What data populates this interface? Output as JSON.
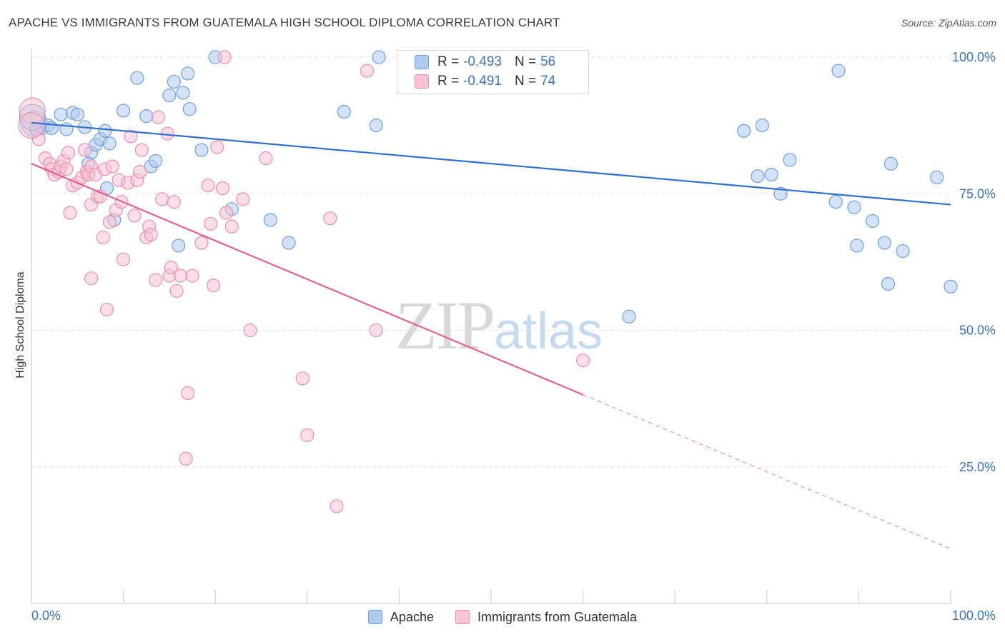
{
  "title": "APACHE VS IMMIGRANTS FROM GUATEMALA HIGH SCHOOL DIPLOMA CORRELATION CHART",
  "source": "Source: ZipAtlas.com",
  "watermark": {
    "zip": "ZIP",
    "atlas": "atlas"
  },
  "legend": {
    "apache": {
      "r_label": "R =",
      "r_value": "-0.493",
      "n_label": "N =",
      "n_value": "56"
    },
    "guatemala": {
      "r_label": "R =",
      "r_value": "-0.491",
      "n_label": "N =",
      "n_value": "74"
    }
  },
  "colors": {
    "apache_fill": "#aecbf0",
    "apache_stroke": "#6f9fdc",
    "apache_line": "#2f6fce",
    "guatemala_fill": "#f8c3d3",
    "guatemala_stroke": "#ec8fac",
    "guatemala_line": "#e2628f",
    "axis_tick_text": "#3b73c4",
    "grid": "#e0e0e0"
  },
  "chart_data": {
    "type": "scatter",
    "title": "APACHE VS IMMIGRANTS FROM GUATEMALA HIGH SCHOOL DIPLOMA CORRELATION CHART",
    "xlabel": "",
    "ylabel": "High School Diploma",
    "xlim": [
      0,
      100
    ],
    "ylim": [
      0,
      100
    ],
    "x_tick_labels": [
      "0.0%",
      "100.0%"
    ],
    "y_tick_labels": [
      "25.0%",
      "50.0%",
      "75.0%",
      "100.0%"
    ],
    "y_ticks": [
      25,
      50,
      75,
      100
    ],
    "grid": true,
    "legend_position": "top-center",
    "series": [
      {
        "name": "Apache",
        "color": "#aecbf0",
        "trend": {
          "x": [
            0,
            100
          ],
          "y": [
            88.0,
            73.0
          ],
          "dashed_from": null
        },
        "points": [
          [
            0.3,
            87.8
          ],
          [
            0.5,
            86.8
          ],
          [
            1.2,
            87.0
          ],
          [
            1.8,
            87.5
          ],
          [
            2.2,
            87.0
          ],
          [
            3.2,
            89.5
          ],
          [
            3.8,
            86.8
          ],
          [
            4.5,
            89.8
          ],
          [
            5.0,
            89.5
          ],
          [
            5.8,
            87.2
          ],
          [
            6.5,
            82.5
          ],
          [
            6.2,
            80.5
          ],
          [
            7.0,
            84.0
          ],
          [
            7.5,
            85.0
          ],
          [
            8.0,
            86.5
          ],
          [
            8.5,
            84.2
          ],
          [
            8.2,
            76.0
          ],
          [
            9.0,
            70.2
          ],
          [
            10.0,
            90.2
          ],
          [
            11.5,
            96.2
          ],
          [
            12.5,
            89.2
          ],
          [
            13.0,
            80.0
          ],
          [
            13.5,
            81.0
          ],
          [
            15.0,
            93.0
          ],
          [
            15.5,
            95.5
          ],
          [
            16.5,
            93.5
          ],
          [
            17.0,
            97.0
          ],
          [
            17.2,
            90.5
          ],
          [
            16.0,
            65.5
          ],
          [
            18.5,
            83.0
          ],
          [
            20.0,
            100.0
          ],
          [
            21.8,
            72.2
          ],
          [
            26.0,
            70.2
          ],
          [
            28.0,
            66.0
          ],
          [
            34.0,
            90.0
          ],
          [
            37.5,
            87.5
          ],
          [
            37.8,
            100.0
          ],
          [
            65.0,
            52.5
          ],
          [
            77.5,
            86.5
          ],
          [
            79.0,
            78.2
          ],
          [
            79.5,
            87.5
          ],
          [
            80.5,
            78.5
          ],
          [
            81.5,
            75.0
          ],
          [
            82.5,
            81.2
          ],
          [
            87.8,
            97.5
          ],
          [
            87.5,
            73.5
          ],
          [
            89.5,
            72.5
          ],
          [
            89.8,
            65.5
          ],
          [
            91.5,
            70.0
          ],
          [
            92.8,
            66.0
          ],
          [
            93.2,
            58.5
          ],
          [
            93.5,
            80.5
          ],
          [
            94.8,
            64.5
          ],
          [
            98.5,
            78.0
          ],
          [
            100.0,
            58.0
          ],
          [
            0.1,
            89.0
          ]
        ]
      },
      {
        "name": "Immigrants from Guatemala",
        "color": "#f8c3d3",
        "trend": {
          "x": [
            0,
            100
          ],
          "y": [
            80.5,
            10.0
          ],
          "dashed_from": 60
        },
        "points": [
          [
            0.1,
            90.2
          ],
          [
            0.8,
            85.0
          ],
          [
            1.5,
            81.5
          ],
          [
            2.0,
            80.5
          ],
          [
            2.2,
            79.5
          ],
          [
            2.5,
            78.5
          ],
          [
            3.0,
            79.0
          ],
          [
            3.2,
            80.0
          ],
          [
            3.5,
            81.0
          ],
          [
            3.8,
            79.5
          ],
          [
            4.0,
            82.5
          ],
          [
            4.2,
            71.5
          ],
          [
            4.5,
            76.5
          ],
          [
            5.0,
            77.0
          ],
          [
            5.5,
            78.0
          ],
          [
            5.8,
            83.0
          ],
          [
            6.0,
            79.0
          ],
          [
            6.2,
            78.5
          ],
          [
            6.5,
            80.0
          ],
          [
            6.5,
            73.0
          ],
          [
            6.5,
            59.5
          ],
          [
            7.0,
            78.5
          ],
          [
            7.2,
            74.5
          ],
          [
            7.5,
            74.5
          ],
          [
            7.8,
            67.0
          ],
          [
            8.0,
            79.5
          ],
          [
            8.2,
            53.8
          ],
          [
            8.5,
            69.8
          ],
          [
            8.8,
            80.0
          ],
          [
            9.2,
            72.0
          ],
          [
            9.5,
            77.5
          ],
          [
            9.8,
            73.5
          ],
          [
            10.0,
            63.0
          ],
          [
            10.5,
            77.0
          ],
          [
            10.8,
            85.5
          ],
          [
            11.2,
            71.0
          ],
          [
            11.5,
            77.5
          ],
          [
            11.8,
            79.0
          ],
          [
            12.0,
            83.0
          ],
          [
            12.5,
            67.0
          ],
          [
            12.8,
            69.0
          ],
          [
            13.0,
            67.5
          ],
          [
            13.5,
            59.2
          ],
          [
            13.8,
            89.0
          ],
          [
            14.2,
            74.0
          ],
          [
            14.8,
            86.0
          ],
          [
            15.0,
            60.0
          ],
          [
            15.2,
            61.5
          ],
          [
            15.5,
            73.5
          ],
          [
            15.8,
            57.2
          ],
          [
            16.2,
            60.0
          ],
          [
            16.8,
            26.5
          ],
          [
            17.0,
            38.5
          ],
          [
            17.5,
            60.0
          ],
          [
            18.5,
            66.0
          ],
          [
            19.2,
            76.5
          ],
          [
            19.5,
            69.5
          ],
          [
            19.8,
            58.2
          ],
          [
            20.2,
            83.5
          ],
          [
            20.8,
            76.0
          ],
          [
            21.2,
            71.5
          ],
          [
            21.8,
            69.0
          ],
          [
            23.0,
            74.0
          ],
          [
            23.8,
            50.0
          ],
          [
            25.5,
            81.5
          ],
          [
            29.5,
            41.2
          ],
          [
            30.0,
            30.8
          ],
          [
            32.5,
            70.5
          ],
          [
            33.2,
            17.8
          ],
          [
            36.5,
            97.5
          ],
          [
            37.5,
            50.0
          ],
          [
            60.0,
            44.5
          ],
          [
            21.0,
            100.0
          ],
          [
            0.0,
            87.5
          ]
        ]
      }
    ]
  }
}
